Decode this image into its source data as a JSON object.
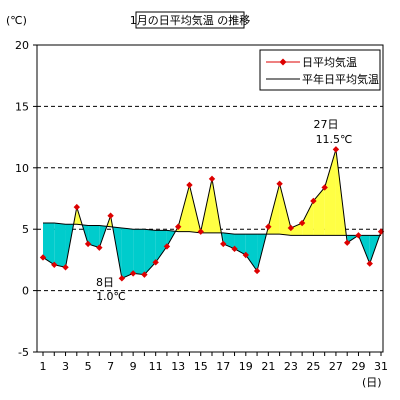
{
  "chart_data": {
    "type": "line",
    "title": "1月の日平均気温 の推移",
    "y_unit": "(℃)",
    "x_unit": "(日)",
    "ylim": [
      -5,
      20
    ],
    "yticks": [
      -5,
      0,
      5,
      10,
      15,
      20
    ],
    "xlim": [
      1,
      31
    ],
    "xticks": [
      1,
      3,
      5,
      7,
      9,
      11,
      13,
      15,
      17,
      19,
      21,
      23,
      25,
      27,
      29,
      31
    ],
    "grid": "horizontal dashed",
    "legend_position": "top-right",
    "x": [
      1,
      2,
      3,
      4,
      5,
      6,
      7,
      8,
      9,
      10,
      11,
      12,
      13,
      14,
      15,
      16,
      17,
      18,
      19,
      20,
      21,
      22,
      23,
      24,
      25,
      26,
      27,
      28,
      29,
      30,
      31
    ],
    "series": [
      {
        "name": "日平均気温",
        "color": "#dd0000",
        "marker": "diamond",
        "values": [
          2.7,
          2.1,
          1.9,
          6.8,
          3.8,
          3.5,
          6.1,
          1.0,
          1.4,
          1.3,
          2.3,
          3.6,
          5.2,
          8.6,
          4.8,
          9.1,
          3.8,
          3.4,
          2.9,
          1.6,
          5.2,
          8.7,
          5.1,
          5.5,
          7.3,
          8.4,
          11.5,
          3.9,
          4.5,
          2.2,
          4.8
        ]
      },
      {
        "name": "平年日平均気温",
        "color": "#000000",
        "values": [
          5.5,
          5.5,
          5.4,
          5.4,
          5.3,
          5.3,
          5.2,
          5.1,
          5.0,
          5.0,
          4.9,
          4.9,
          4.8,
          4.8,
          4.7,
          4.7,
          4.7,
          4.6,
          4.6,
          4.6,
          4.6,
          4.6,
          4.5,
          4.5,
          4.5,
          4.5,
          4.5,
          4.5,
          4.5,
          4.5,
          4.5
        ]
      }
    ],
    "fill_above_color": "#ffff44",
    "fill_below_color": "#00cccc",
    "annotations": [
      {
        "day_label": "27日",
        "value_label": "11.5℃",
        "day": 27,
        "value": 11.5
      },
      {
        "day_label": "8日",
        "value_label": "1.0℃",
        "day": 8,
        "value": 1.0
      }
    ]
  }
}
